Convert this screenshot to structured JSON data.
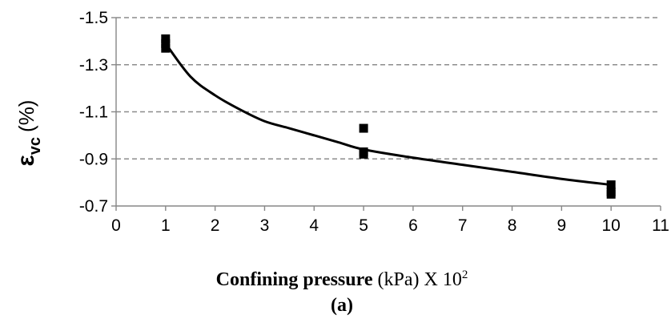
{
  "chart_data": {
    "type": "scatter",
    "ylabel_symbol": "ε",
    "ylabel_subscript": "vc",
    "ylabel_unit": "(%)",
    "xlabel_bold": "Confining pressure",
    "xlabel_unit": "(kPa)",
    "xlabel_mult": "X 10",
    "xlabel_sup": "2",
    "subcaption": "(a)",
    "xlim": [
      0,
      11
    ],
    "ylim": [
      -0.7,
      -1.5
    ],
    "y_axis_reversed": true,
    "grid": "horizontal dashed",
    "x_ticks": [
      "0",
      "1",
      "2",
      "3",
      "4",
      "5",
      "6",
      "7",
      "8",
      "9",
      "10",
      "11"
    ],
    "y_ticks": [
      "-1.5",
      "-1.3",
      "-1.1",
      "-0.9",
      "-0.7"
    ],
    "y_tick_values": [
      -1.5,
      -1.3,
      -1.1,
      -0.9,
      -0.7
    ],
    "series": [
      {
        "kind": "markers",
        "points": [
          {
            "x": 1,
            "y": -1.41
          },
          {
            "x": 1,
            "y": -1.39
          },
          {
            "x": 1,
            "y": -1.37
          },
          {
            "x": 5,
            "y": -1.03
          },
          {
            "x": 5,
            "y": -0.93
          },
          {
            "x": 5,
            "y": -0.92
          },
          {
            "x": 10,
            "y": -0.79
          },
          {
            "x": 10,
            "y": -0.76
          },
          {
            "x": 10,
            "y": -0.75
          }
        ]
      },
      {
        "kind": "trend",
        "points": [
          {
            "x": 1,
            "y": -1.39
          },
          {
            "x": 1.5,
            "y": -1.25
          },
          {
            "x": 2,
            "y": -1.17
          },
          {
            "x": 2.5,
            "y": -1.11
          },
          {
            "x": 3,
            "y": -1.06
          },
          {
            "x": 3.5,
            "y": -1.03
          },
          {
            "x": 4,
            "y": -1.0
          },
          {
            "x": 4.5,
            "y": -0.97
          },
          {
            "x": 5,
            "y": -0.94
          },
          {
            "x": 6,
            "y": -0.905
          },
          {
            "x": 7,
            "y": -0.875
          },
          {
            "x": 8,
            "y": -0.845
          },
          {
            "x": 9,
            "y": -0.815
          },
          {
            "x": 10,
            "y": -0.79
          }
        ]
      }
    ],
    "colors": {
      "marker": "#000000",
      "line": "#000000",
      "grid": "#8c8c8c",
      "axis": "#878787"
    }
  }
}
